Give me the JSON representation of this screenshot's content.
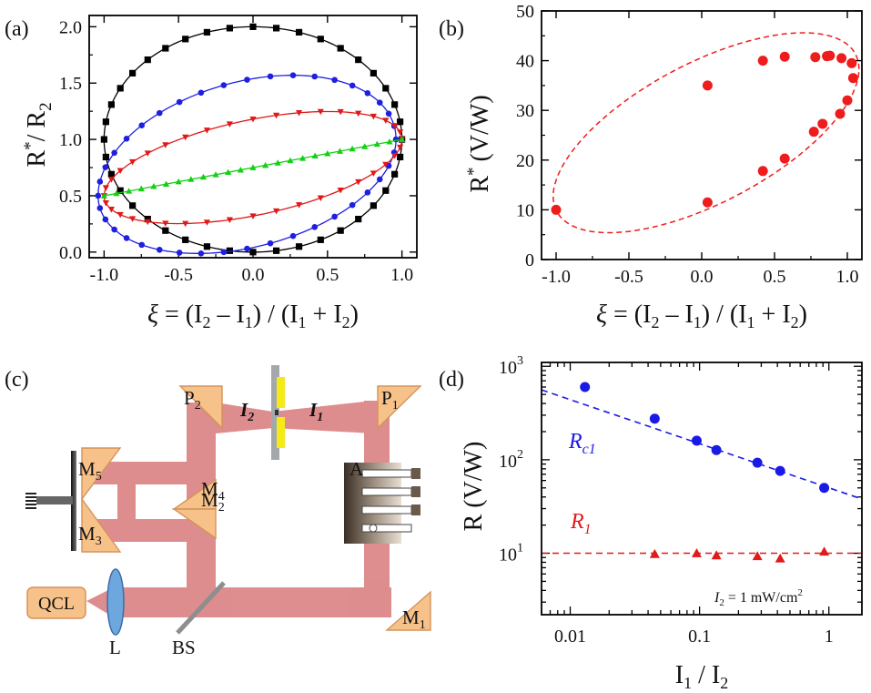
{
  "chart_data": [
    {
      "panel": "(a)",
      "type": "line",
      "ylabel_main": "R",
      "ylabel_sup": "*",
      "ylabel_rest": "/ R",
      "ylabel_sub": "2",
      "xlabel_parts": [
        "ξ",
        " = (I",
        "2",
        " – I",
        "1",
        ") / (I",
        "1",
        " + I",
        "2",
        ")"
      ],
      "xlim": [
        -1.1,
        1.1
      ],
      "ylim": [
        -0.05,
        2.1
      ],
      "xticks": [
        -1.0,
        -0.5,
        0.0,
        0.5,
        1.0
      ],
      "xtick_labels": [
        "-1.0",
        "-0.5",
        "0.0",
        "0.5",
        "1.0"
      ],
      "yticks": [
        0.0,
        0.5,
        1.0,
        1.5,
        2.0
      ],
      "ytick_labels": [
        "0.0",
        "0.5",
        "1.0",
        "1.5",
        "2.0"
      ],
      "series": [
        {
          "color": "#000000",
          "marker": "square",
          "ellipse": {
            "xc": 0,
            "yc": 1.0,
            "a": 1.0,
            "bUpper": 1.0,
            "bLower": 1.0,
            "skew": 0
          }
        },
        {
          "color": "#1f1fe0",
          "marker": "circle",
          "ellipse": {
            "xc": -0.04,
            "yc": 0.75,
            "a": 1.0,
            "bUpper": 0.78,
            "bLower": 0.72,
            "skew": 0.25
          }
        },
        {
          "color": "#e01818",
          "marker": "triangle-down",
          "ellipse": {
            "xc": 0,
            "yc": 0.75,
            "a": 1.0,
            "bUpper": 0.43,
            "bLower": 0.43,
            "skew": 0.25
          }
        },
        {
          "color": "#12d012",
          "marker": "triangle-up",
          "line": {
            "x": [
              -1.0,
              1.0
            ],
            "y": [
              0.5,
              1.0
            ]
          }
        }
      ]
    },
    {
      "panel": "(b)",
      "type": "scatter",
      "ylabel_main": "R",
      "ylabel_sup": "*",
      "ylabel_rest": "(V/W)",
      "xlabel_parts": [
        "ξ",
        " = (I",
        "2",
        " – I",
        "1",
        ") / (I",
        "1",
        " + I",
        "2",
        ")"
      ],
      "xlim": [
        -1.1,
        1.1
      ],
      "ylim": [
        0,
        50
      ],
      "xticks": [
        -1.0,
        -0.5,
        0.0,
        0.5,
        1.0
      ],
      "xtick_labels": [
        "-1.0",
        "-0.5",
        "0.0",
        "0.5",
        "1.0"
      ],
      "yticks": [
        0,
        10,
        20,
        30,
        40,
        50
      ],
      "ytick_labels": [
        "0",
        "10",
        "20",
        "30",
        "40",
        "50"
      ],
      "points": {
        "x": [
          -1.0,
          0.04,
          0.04,
          0.42,
          0.42,
          0.57,
          0.57,
          0.77,
          0.78,
          0.83,
          0.86,
          0.88,
          0.95,
          0.96,
          1.0,
          1.03
        ],
        "y": [
          10,
          11.5,
          35,
          17.8,
          40,
          20.3,
          40.8,
          25.7,
          40.7,
          27.3,
          40.9,
          41,
          29.3,
          40.5,
          32,
          39.5
        ]
      },
      "extra_points": {
        "x": [
          1.04
        ],
        "y": [
          36.5
        ]
      },
      "fit_ellipse": {
        "xc": 0.03,
        "yc": 25.5,
        "a": 1.05,
        "bUpper": 15.5,
        "bLower": 15.5,
        "skew": 12.8
      },
      "color": "#ee1c1c"
    },
    {
      "panel": "(d)",
      "type": "scatter",
      "xscale": "log",
      "yscale": "log",
      "xlim": [
        0.006,
        1.8
      ],
      "ylim": [
        2.2,
        1100
      ],
      "xticks": [
        0.01,
        0.1,
        1
      ],
      "xtick_labels": [
        "0.01",
        "0.1",
        "1"
      ],
      "yticks": [
        10,
        100,
        1000
      ],
      "ytick_labels": [
        "10",
        "10",
        "10"
      ],
      "ytick_exps": [
        "1",
        "2",
        "3"
      ],
      "ylabel": "R (V/W)",
      "xlabel_parts": [
        "I",
        "1",
        " / I",
        "2"
      ],
      "series": [
        {
          "name": "R",
          "name_sub": "c1",
          "color": "#1a1ae6",
          "marker": "circle",
          "x": [
            0.013,
            0.045,
            0.095,
            0.135,
            0.28,
            0.42,
            0.92
          ],
          "y": [
            600,
            275,
            160,
            127,
            93,
            76,
            50
          ],
          "fit": {
            "x": [
              0.006,
              1.8
            ],
            "y": [
              560,
              38
            ]
          }
        },
        {
          "name": "R",
          "name_sub": "1",
          "color": "#e11a1a",
          "marker": "triangle",
          "x": [
            0.045,
            0.095,
            0.135,
            0.28,
            0.42,
            0.92
          ],
          "y": [
            9.8,
            10,
            9.5,
            9.3,
            8.8,
            10.4
          ],
          "fit": {
            "x": [
              0.006,
              1.8
            ],
            "y": [
              10,
              10
            ]
          }
        }
      ],
      "annotation": {
        "sym": "I",
        "sub": "2",
        "text": " = 1 mW/cm",
        "sup": "2"
      }
    }
  ],
  "setup": {
    "panel": "(c)",
    "qcl": "QCL",
    "lens": "L",
    "bs": "BS",
    "m1": "M",
    "m1_sub": "1",
    "m2": "M",
    "m2_sub": "2",
    "m3": "M",
    "m3_sub": "3",
    "m4": "M",
    "m4_sub": "4",
    "m5": "M",
    "m5_sub": "5",
    "p1": "P",
    "p1_sub": "1",
    "p2": "P",
    "p2_sub": "2",
    "i1": "I",
    "i1_sub": "1",
    "i2": "I",
    "i2_sub": "2",
    "a": "A"
  }
}
